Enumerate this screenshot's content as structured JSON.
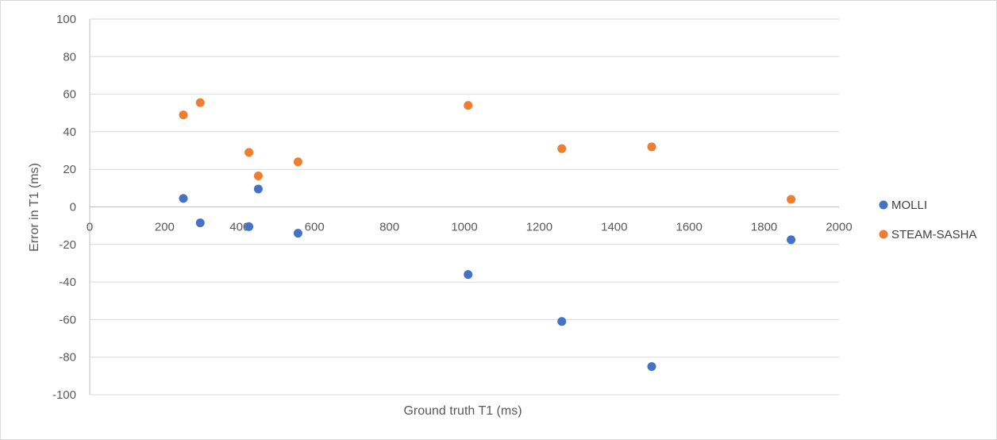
{
  "chart_data": {
    "type": "scatter",
    "title": "",
    "xlabel": "Ground truth T1 (ms)",
    "ylabel": "Error in T1 (ms)",
    "xlim": [
      0,
      2000
    ],
    "ylim": [
      -100,
      100
    ],
    "x_ticks": [
      0,
      200,
      400,
      600,
      800,
      1000,
      1200,
      1400,
      1600,
      1800,
      2000
    ],
    "y_ticks": [
      100,
      80,
      60,
      40,
      20,
      0,
      -20,
      -40,
      -60,
      -80,
      -100
    ],
    "grid": "horizontal",
    "legend_position": "right",
    "series": [
      {
        "name": "MOLLI",
        "color": "#4472c4",
        "points": [
          {
            "x": 250,
            "y": 4.5
          },
          {
            "x": 295,
            "y": -8.5
          },
          {
            "x": 425,
            "y": -10.5
          },
          {
            "x": 450,
            "y": 9.5
          },
          {
            "x": 556,
            "y": -14
          },
          {
            "x": 1010,
            "y": -36
          },
          {
            "x": 1260,
            "y": -61
          },
          {
            "x": 1500,
            "y": -85
          },
          {
            "x": 1872,
            "y": -17.5
          }
        ]
      },
      {
        "name": "STEAM-SASHA",
        "color": "#ed7d31",
        "points": [
          {
            "x": 250,
            "y": 49
          },
          {
            "x": 295,
            "y": 55.5
          },
          {
            "x": 425,
            "y": 29
          },
          {
            "x": 450,
            "y": 16.5
          },
          {
            "x": 556,
            "y": 24
          },
          {
            "x": 1010,
            "y": 54
          },
          {
            "x": 1260,
            "y": 31
          },
          {
            "x": 1500,
            "y": 32
          },
          {
            "x": 1872,
            "y": 4
          }
        ]
      }
    ]
  }
}
